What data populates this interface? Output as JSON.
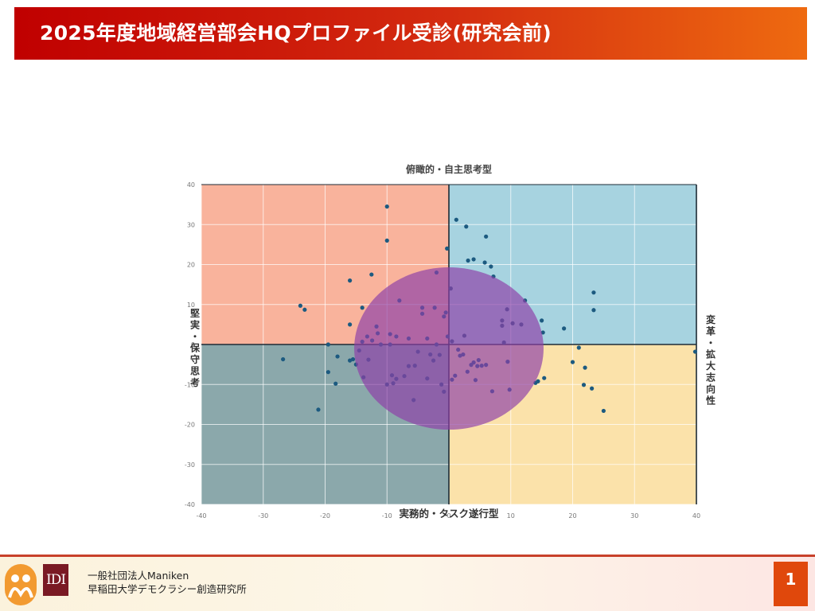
{
  "slide": {
    "title": "2025年度地域経営部会HQプロファイル受診(研究会前)",
    "page_number": "1"
  },
  "footer": {
    "org_line1": "一般社団法人Maniken",
    "org_line2": "早稲田大学デモクラシー創造研究所",
    "logo_text": "IDI"
  },
  "colors": {
    "quadrant_top_left": "#f9b39c",
    "quadrant_top_right": "#a7d3e0",
    "quadrant_bottom_left": "#8ba8ab",
    "quadrant_bottom_right": "#fbe2aa",
    "points": "#1c5a80",
    "ellipse": "#8e3fa8"
  },
  "chart_data": {
    "type": "scatter",
    "title": "俯瞰的・自主思考型",
    "xlabel": "実務的・タスク遂行型",
    "ylabel": "堅実・保守思考",
    "right_label": "変革・拡大志向性",
    "xlim": [
      -40,
      40
    ],
    "ylim": [
      -40,
      40
    ],
    "xticks": [
      -40,
      -30,
      -20,
      -10,
      0,
      10,
      20,
      30,
      40
    ],
    "yticks": [
      -40,
      -30,
      -20,
      -10,
      0,
      10,
      20,
      30,
      40
    ],
    "grid": true,
    "ellipse": {
      "cx": 0,
      "cy": -1,
      "rx": 15.3,
      "ry": 20.3
    },
    "points": [
      [
        -10,
        34.5
      ],
      [
        -10,
        26
      ],
      [
        -12.5,
        17.5
      ],
      [
        -16,
        16
      ],
      [
        -24,
        9.7
      ],
      [
        -23.3,
        8.7
      ],
      [
        -14,
        9.2
      ],
      [
        -8,
        11
      ],
      [
        -4.3,
        9.2
      ],
      [
        -2.3,
        9.2
      ],
      [
        -4.3,
        7.7
      ],
      [
        -0.8,
        7
      ],
      [
        -0.5,
        8
      ],
      [
        -2,
        18
      ],
      [
        -0.3,
        24
      ],
      [
        0.3,
        14
      ],
      [
        -16,
        5
      ],
      [
        -11.7,
        4.5
      ],
      [
        -12.4,
        1
      ],
      [
        -13.2,
        2
      ],
      [
        -11.5,
        2.8
      ],
      [
        -14,
        0.7
      ],
      [
        -11,
        0
      ],
      [
        -8.5,
        2
      ],
      [
        -9.5,
        2.6
      ],
      [
        -9.5,
        0
      ],
      [
        -6.5,
        1.5
      ],
      [
        -3.5,
        1.5
      ],
      [
        -2,
        0
      ],
      [
        -0.2,
        2
      ],
      [
        0.5,
        0.8
      ],
      [
        -19.5,
        0
      ],
      [
        -16,
        -4
      ],
      [
        -15,
        -5
      ],
      [
        -14.5,
        -1.5
      ],
      [
        -13,
        -3.8
      ],
      [
        -26.8,
        -3.7
      ],
      [
        -21.1,
        -16.3
      ],
      [
        -18.3,
        -9.8
      ],
      [
        -19.5,
        -6.9
      ],
      [
        -18,
        -3
      ],
      [
        -15.5,
        -3.7
      ],
      [
        -13.8,
        -8.2
      ],
      [
        -10,
        -10
      ],
      [
        -9.2,
        -7.7
      ],
      [
        -9,
        -9.7
      ],
      [
        -8.5,
        -8.6
      ],
      [
        -7.2,
        -7.9
      ],
      [
        -6.5,
        -5.4
      ],
      [
        -5.5,
        -5.3
      ],
      [
        -5.7,
        -13.9
      ],
      [
        -5,
        -1.8
      ],
      [
        -3.5,
        -8.5
      ],
      [
        -3,
        -2.5
      ],
      [
        -2.5,
        -4
      ],
      [
        -1.5,
        -2.6
      ],
      [
        -1.2,
        -10
      ],
      [
        -0.8,
        -11.8
      ],
      [
        0.5,
        -8.8
      ],
      [
        1,
        -7.8
      ],
      [
        1.5,
        -1.3
      ],
      [
        1.8,
        -2.8
      ],
      [
        2.3,
        -2.5
      ],
      [
        2.5,
        2.2
      ],
      [
        3,
        -6.8
      ],
      [
        3.6,
        -5.1
      ],
      [
        4,
        -4.5
      ],
      [
        4.3,
        -8.9
      ],
      [
        4.6,
        -5.4
      ],
      [
        4.8,
        -3.9
      ],
      [
        5.3,
        -5.3
      ],
      [
        6,
        -5.1
      ],
      [
        7,
        -11.7
      ],
      [
        1.2,
        31.2
      ],
      [
        2.8,
        29.5
      ],
      [
        6,
        27
      ],
      [
        3.1,
        21
      ],
      [
        4,
        21.3
      ],
      [
        5.8,
        20.5
      ],
      [
        6.8,
        19.5
      ],
      [
        7.2,
        17
      ],
      [
        8.6,
        6
      ],
      [
        8.6,
        4.7
      ],
      [
        8.9,
        0.5
      ],
      [
        9.4,
        8.8
      ],
      [
        9.5,
        -4.3
      ],
      [
        9.8,
        -11.3
      ],
      [
        10.3,
        5.3
      ],
      [
        11.7,
        5
      ],
      [
        12.3,
        11
      ],
      [
        14,
        -9.6
      ],
      [
        14.4,
        -9.2
      ],
      [
        15,
        6
      ],
      [
        15.2,
        3
      ],
      [
        15.4,
        -8.4
      ],
      [
        18.6,
        4
      ],
      [
        20,
        -4.4
      ],
      [
        21,
        -0.8
      ],
      [
        21.8,
        -10.1
      ],
      [
        22,
        -5.8
      ],
      [
        23.1,
        -11
      ],
      [
        23.4,
        13
      ],
      [
        23.4,
        8.6
      ],
      [
        25,
        -16.6
      ],
      [
        39.8,
        -1.8
      ]
    ]
  }
}
